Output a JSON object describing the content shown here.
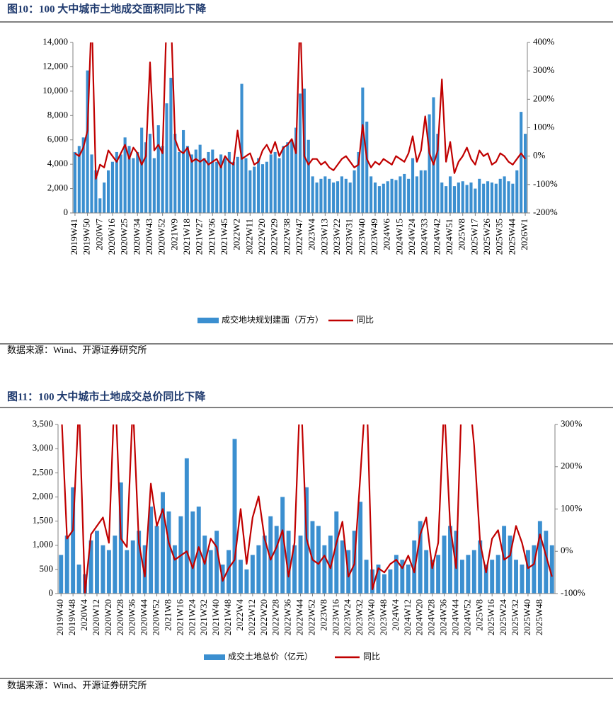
{
  "chart_data": [
    {
      "type": "bar",
      "title": "图10：100 大中城市土地成交面积同比下降",
      "source": "数据来源：Wind、开源证券研究所",
      "categories": [
        "2019W41",
        null,
        null,
        "2019W50",
        null,
        null,
        "2020W7",
        null,
        null,
        "2020W16",
        null,
        null,
        "2020W25",
        null,
        null,
        "2020W34",
        null,
        null,
        "2020W43",
        null,
        null,
        "2020W52",
        null,
        null,
        "2021W9",
        null,
        null,
        "2021W18",
        null,
        null,
        "2021W27",
        null,
        null,
        "2021W36",
        null,
        null,
        "2021W45",
        null,
        null,
        "2022W2",
        null,
        null,
        "2022W11",
        null,
        null,
        "2022W20",
        null,
        null,
        "2022W29",
        null,
        null,
        "2022W38",
        null,
        null,
        "2022W47",
        null,
        null,
        "2023W4",
        null,
        null,
        "2023W13",
        null,
        null,
        "2023W22",
        null,
        null,
        "2023W31",
        null,
        null,
        "2023W40",
        null,
        null,
        "2023W49",
        null,
        null,
        "2024W6",
        null,
        null,
        "2024W15",
        null,
        null,
        "2024W24",
        null,
        null,
        "2024W33",
        null,
        null,
        "2024W42",
        null,
        null,
        "2024W51",
        null,
        null,
        "2025W8",
        null,
        null,
        "2025W17",
        null,
        null,
        "2025W26",
        null,
        null,
        "2025W35",
        null,
        null,
        "2025W44",
        null,
        null,
        "2026W1"
      ],
      "series": [
        {
          "name": "成交地块规划建面（万方）",
          "type": "bar",
          "color": "#3b8fd0",
          "values": [
            5000,
            5500,
            6200,
            11700,
            4800,
            3500,
            1200,
            2500,
            3500,
            4200,
            5000,
            4800,
            6200,
            5500,
            4500,
            5000,
            7000,
            5800,
            6500,
            4500,
            7200,
            5500,
            9000,
            11100,
            6500,
            5000,
            6800,
            5500,
            4800,
            5200,
            5600,
            4500,
            5000,
            5200,
            4200,
            4800,
            4500,
            5000,
            4200,
            4600,
            10600,
            4500,
            3500,
            3800,
            4500,
            4000,
            4200,
            4800,
            5000,
            4500,
            5500,
            5800,
            6000,
            7000,
            9800,
            10200,
            6000,
            3000,
            2500,
            2800,
            3000,
            2800,
            2500,
            2600,
            3000,
            2800,
            2500,
            3500,
            5000,
            10300,
            7500,
            3000,
            2500,
            2200,
            2400,
            2600,
            2800,
            2700,
            3000,
            3200,
            2800,
            4500,
            3000,
            3500,
            3500,
            8100,
            9500,
            6500,
            2500,
            2200,
            3000,
            2200,
            2500,
            2600,
            2300,
            2500,
            2000,
            2800,
            2400,
            2600,
            2500,
            2400,
            2800,
            3000,
            2600,
            2400,
            3500,
            8300,
            6500
          ]
        },
        {
          "name": "同比",
          "type": "line",
          "axis": "y2",
          "color": "#c00000",
          "values": [
            10,
            0,
            30,
            90,
            500,
            -80,
            -30,
            -40,
            20,
            0,
            -20,
            10,
            40,
            -10,
            30,
            10,
            -30,
            0,
            330,
            20,
            40,
            10,
            500,
            500,
            60,
            20,
            10,
            30,
            -20,
            -10,
            -20,
            -10,
            -30,
            -20,
            -10,
            -40,
            0,
            -20,
            -30,
            90,
            -10,
            0,
            10,
            -30,
            -20,
            20,
            40,
            10,
            50,
            0,
            30,
            40,
            60,
            10,
            500,
            0,
            -30,
            -10,
            -10,
            -30,
            -20,
            -40,
            -50,
            -30,
            -10,
            0,
            -20,
            -40,
            -30,
            110,
            -10,
            -40,
            -20,
            -30,
            -10,
            -20,
            -30,
            0,
            -10,
            -20,
            10,
            70,
            -20,
            20,
            140,
            10,
            -30,
            20,
            270,
            -20,
            50,
            -60,
            -20,
            0,
            30,
            -10,
            -30,
            20,
            0,
            10,
            -30,
            -20,
            10,
            0,
            -20,
            -30,
            -10,
            10,
            -10
          ]
        }
      ],
      "ylim": [
        0,
        14000
      ],
      "yticks": [
        0,
        {
          "value": 2000,
          "label": "2,000"
        },
        {
          "value": 4000,
          "label": "4,000"
        },
        {
          "value": 6000,
          "label": "6,000"
        },
        {
          "value": 8000,
          "label": "8,000"
        },
        {
          "value": 10000,
          "label": "10,000"
        },
        {
          "value": 12000,
          "label": "12,000"
        },
        {
          "value": 14000,
          "label": "14,000"
        }
      ],
      "y2lim": [
        -200,
        400
      ],
      "y2ticks": [
        {
          "value": -200,
          "label": "-200%"
        },
        {
          "value": -100,
          "label": "-100%"
        },
        {
          "value": 0,
          "label": "0%"
        },
        {
          "value": 100,
          "label": "100%"
        },
        {
          "value": 200,
          "label": "200%"
        },
        {
          "value": 300,
          "label": "300%"
        },
        {
          "value": 400,
          "label": "400%"
        }
      ],
      "legend": "bottom",
      "grid": false
    },
    {
      "type": "bar",
      "title": "图11：100 大中城市土地成交总价同比下降",
      "source": "数据来源：Wind、开源证券研究所",
      "categories": [
        "2019W40",
        null,
        "2019W48",
        null,
        "2020W4",
        null,
        "2020W12",
        null,
        "2020W20",
        null,
        "2020W28",
        null,
        "2020W36",
        null,
        "2020W44",
        null,
        "2020W52",
        null,
        "2021W8",
        null,
        "2021W16",
        null,
        "2021W24",
        null,
        "2021W32",
        null,
        "2021W40",
        null,
        "2021W48",
        null,
        "2022W4",
        null,
        "2022W12",
        null,
        "2022W20",
        null,
        "2022W28",
        null,
        "2022W36",
        null,
        "2022W44",
        null,
        "2022W52",
        null,
        "2023W8",
        null,
        "2023W16",
        null,
        "2023W24",
        null,
        "2023W32",
        null,
        "2023W40",
        null,
        "2023W48",
        null,
        "2024W4",
        null,
        "2024W12",
        null,
        "2024W20",
        null,
        "2024W28",
        null,
        "2024W36",
        null,
        "2024W44",
        null,
        "2024W52",
        null,
        "2025W8",
        null,
        "2025W16",
        null,
        "2025W24",
        null,
        "2025W32",
        null,
        "2025W40",
        null,
        "2025W48",
        null,
        null
      ],
      "series": [
        {
          "name": "成交土地总价（亿元）",
          "type": "bar",
          "color": "#3b8fd0",
          "values": [
            800,
            1200,
            2200,
            600,
            400,
            1100,
            1300,
            1000,
            900,
            1200,
            2300,
            900,
            1100,
            1300,
            1000,
            1800,
            1400,
            2100,
            1700,
            1000,
            1600,
            2800,
            1700,
            1800,
            1200,
            900,
            1300,
            600,
            900,
            3200,
            700,
            500,
            800,
            1000,
            1200,
            1600,
            1400,
            2000,
            1300,
            1000,
            1200,
            2200,
            1500,
            1400,
            1000,
            1200,
            1700,
            1100,
            900,
            1300,
            1900,
            700,
            500,
            600,
            400,
            500,
            800,
            700,
            600,
            1100,
            1500,
            900,
            700,
            800,
            1200,
            1400,
            1300,
            700,
            800,
            900,
            1100,
            600,
            700,
            800,
            1400,
            1200,
            700,
            600,
            900,
            1000,
            1500,
            1300,
            1000
          ]
        },
        {
          "name": "同比",
          "type": "line",
          "axis": "y2",
          "color": "#c00000",
          "values": [
            350,
            30,
            50,
            350,
            -100,
            40,
            60,
            80,
            20,
            400,
            30,
            10,
            350,
            20,
            -60,
            160,
            60,
            100,
            20,
            -20,
            -10,
            0,
            -40,
            10,
            -30,
            30,
            10,
            -70,
            -40,
            -20,
            100,
            -30,
            80,
            130,
            30,
            -20,
            10,
            50,
            -60,
            20,
            400,
            30,
            -20,
            -30,
            -10,
            -40,
            20,
            70,
            -60,
            -30,
            180,
            400,
            -90,
            -40,
            -50,
            -30,
            -20,
            -40,
            -10,
            -50,
            40,
            80,
            -40,
            20,
            350,
            60,
            -40,
            400,
            400,
            250,
            20,
            -50,
            30,
            50,
            -20,
            -10,
            60,
            20,
            -40,
            -30,
            40,
            -10,
            -60
          ]
        }
      ],
      "ylim": [
        0,
        3500
      ],
      "yticks": [
        0,
        500,
        {
          "value": 1000,
          "label": "1,000"
        },
        {
          "value": 1500,
          "label": "1,500"
        },
        {
          "value": 2000,
          "label": "2,000"
        },
        {
          "value": 2500,
          "label": "2,500"
        },
        {
          "value": 3000,
          "label": "3,000"
        },
        {
          "value": 3500,
          "label": "3,500"
        }
      ],
      "y2lim": [
        -100,
        300
      ],
      "y2ticks": [
        {
          "value": -100,
          "label": "-100%"
        },
        {
          "value": 0,
          "label": "0%"
        },
        {
          "value": 100,
          "label": "100%"
        },
        {
          "value": 200,
          "label": "200%"
        },
        {
          "value": 300,
          "label": "300%"
        }
      ],
      "legend": "bottom",
      "grid": false
    }
  ]
}
